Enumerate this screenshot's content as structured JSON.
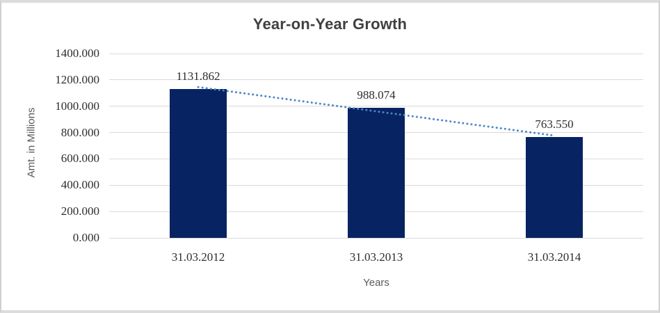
{
  "chart": {
    "title": "Year-on-Year Growth",
    "y_axis_title": "Amt. in Millions",
    "x_axis_title": "Years",
    "colors": {
      "bar": "#082361",
      "trendline": "#4a87ca",
      "gridline": "#d9d9d9",
      "title_text": "#404040",
      "tick_text": "#2d2d2d",
      "axis_title_text": "#595959"
    }
  },
  "chart_data": {
    "type": "bar",
    "title": "Year-on-Year Growth",
    "xlabel": "Years",
    "ylabel": "Amt. in Millions",
    "categories": [
      "31.03.2012",
      "31.03.2013",
      "31.03.2014"
    ],
    "values": [
      1131.862,
      988.074,
      763.55
    ],
    "data_labels": [
      "1131.862",
      "988.074",
      "763.550"
    ],
    "y_ticks": [
      "1400.000",
      "1200.000",
      "1000.000",
      "800.000",
      "600.000",
      "400.000",
      "200.000",
      "0.000"
    ],
    "ylim": [
      0,
      1400
    ],
    "grid": true,
    "legend": "none",
    "trendline": {
      "type": "linear",
      "style": "dotted"
    }
  }
}
